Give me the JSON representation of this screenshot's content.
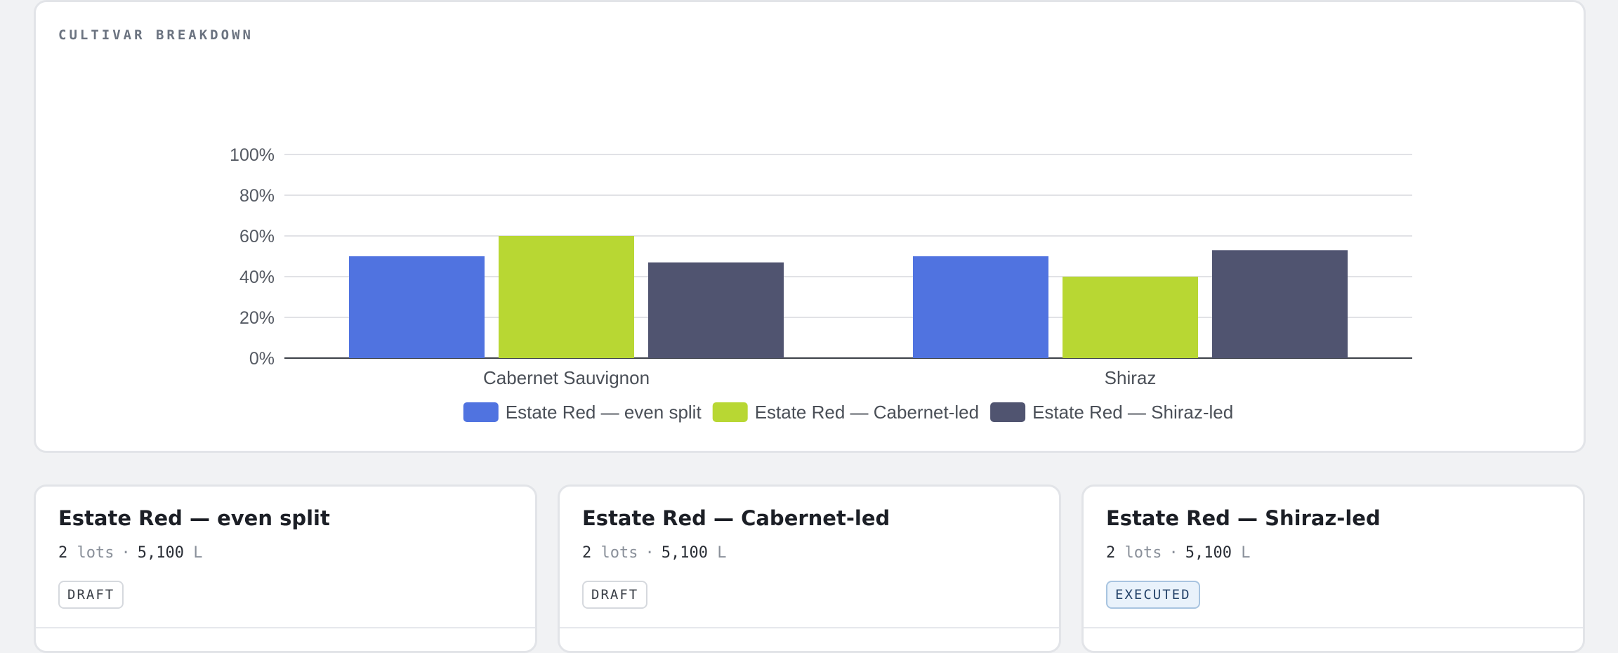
{
  "section_title": "CULTIVAR BREAKDOWN",
  "chart_data": {
    "type": "bar",
    "categories": [
      "Cabernet Sauvignon",
      "Shiraz"
    ],
    "series": [
      {
        "name": "Estate Red — even split",
        "color": "#5073e0",
        "values": [
          50,
          50
        ]
      },
      {
        "name": "Estate Red — Cabernet-led",
        "color": "#b8d733",
        "values": [
          60,
          40
        ]
      },
      {
        "name": "Estate Red — Shiraz-led",
        "color": "#505470",
        "values": [
          47,
          53
        ]
      }
    ],
    "yticks": [
      "0%",
      "20%",
      "40%",
      "60%",
      "80%",
      "100%"
    ],
    "ylim": [
      0,
      100
    ],
    "grid": true,
    "legend": "bottom"
  },
  "cards": [
    {
      "title": "Estate Red — even split",
      "lots_num": "2",
      "lots_unit": "lots",
      "sep": "·",
      "volume_num": "5,100",
      "volume_unit": "L",
      "status": "DRAFT"
    },
    {
      "title": "Estate Red — Cabernet-led",
      "lots_num": "2",
      "lots_unit": "lots",
      "sep": "·",
      "volume_num": "5,100",
      "volume_unit": "L",
      "status": "DRAFT"
    },
    {
      "title": "Estate Red — Shiraz-led",
      "lots_num": "2",
      "lots_unit": "lots",
      "sep": "·",
      "volume_num": "5,100",
      "volume_unit": "L",
      "status": "EXECUTED"
    }
  ]
}
